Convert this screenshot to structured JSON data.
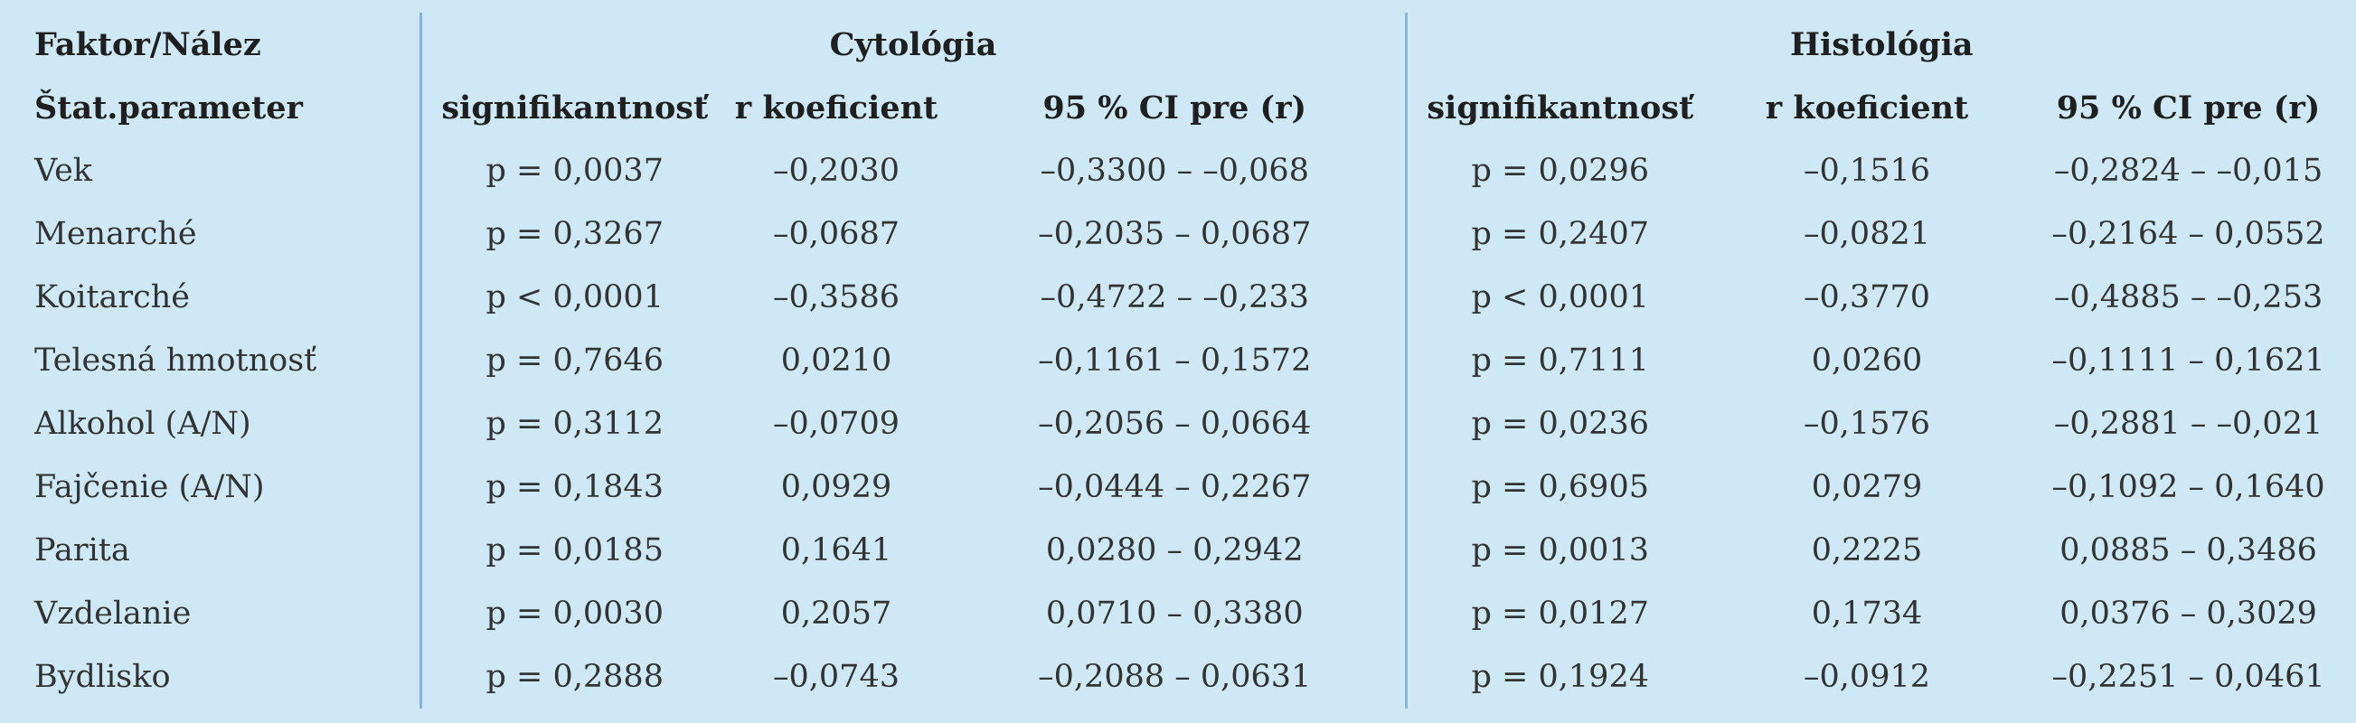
{
  "header": {
    "factor_label": "Faktor/Nález",
    "stat_label": "Štat.parameter",
    "groups": [
      "Cytológia",
      "Histológia"
    ],
    "subcolumns": [
      "signifikantnosť",
      "r koeficient",
      "95 % CI pre (r)",
      "signifikantnosť",
      "r koeficient",
      "95 % CI pre (r)"
    ]
  },
  "rows": [
    {
      "factor": "Vek",
      "cells": [
        "p = 0,0037",
        "–0,2030",
        "–0,3300 – –0,068",
        "p = 0,0296",
        "–0,1516",
        "–0,2824 – –0,015"
      ]
    },
    {
      "factor": "Menarché",
      "cells": [
        "p = 0,3267",
        "–0,0687",
        "–0,2035 – 0,0687",
        "p = 0,2407",
        "–0,0821",
        "–0,2164 – 0,0552"
      ]
    },
    {
      "factor": "Koitarché",
      "cells": [
        "p < 0,0001",
        "–0,3586",
        "–0,4722 – –0,233",
        "p < 0,0001",
        "–0,3770",
        "–0,4885 – –0,253"
      ]
    },
    {
      "factor": "Telesná hmotnosť",
      "cells": [
        "p = 0,7646",
        "0,0210",
        "–0,1161 – 0,1572",
        "p = 0,7111",
        "0,0260",
        "–0,1111 – 0,1621"
      ]
    },
    {
      "factor": "Alkohol (A/N)",
      "cells": [
        "p = 0,3112",
        "–0,0709",
        "–0,2056 – 0,0664",
        "p = 0,0236",
        "–0,1576",
        "–0,2881 – –0,021"
      ]
    },
    {
      "factor": "Fajčenie (A/N)",
      "cells": [
        "p = 0,1843",
        "0,0929",
        "–0,0444 – 0,2267",
        "p = 0,6905",
        "0,0279",
        "–0,1092 – 0,1640"
      ]
    },
    {
      "factor": "Parita",
      "cells": [
        "p = 0,0185",
        "0,1641",
        "0,0280 – 0,2942",
        "p = 0,0013",
        "0,2225",
        "0,0885 – 0,3486"
      ]
    },
    {
      "factor": "Vzdelanie",
      "cells": [
        "p = 0,0030",
        "0,2057",
        "0,0710 – 0,3380",
        "p = 0,0127",
        "0,1734",
        "0,0376 – 0,3029"
      ]
    },
    {
      "factor": "Bydlisko",
      "cells": [
        "p = 0,2888",
        "–0,0743",
        "–0,2088 – 0,0631",
        "p = 0,1924",
        "–0,0912",
        "–0,2251 – 0,0461"
      ]
    }
  ]
}
